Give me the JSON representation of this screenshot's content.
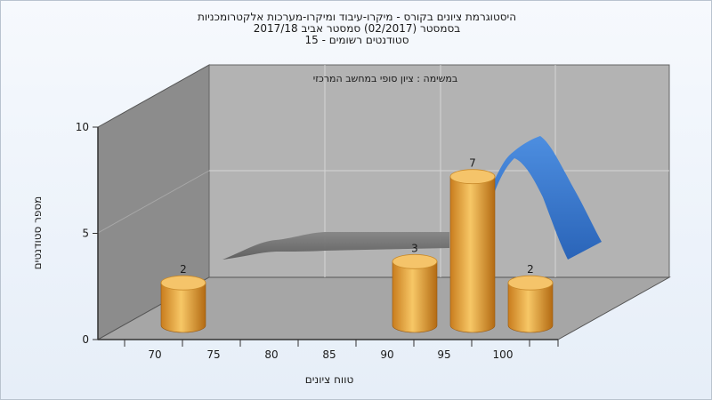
{
  "title": {
    "line1": "היסטוגרמת ציונים בקורס - מיקרו-עיבוד ומיקרו-מערכות אלקטרומכניות",
    "line2": "בסמסטר  (02/2017)  סמסטר אביב 2017/18",
    "line3": "סטודנטים רשומים - 15"
  },
  "chart_data": {
    "type": "bar",
    "title": "היסטוגרמת ציונים בקורס - מיקרו-עיבוד ומיקרו-מערכות אלקטרומכניות",
    "annotation": "במשימה : ציון סופי במחשב המרכזי",
    "xlabel": "טווח ציונים",
    "ylabel": "מספר סטודנטים",
    "x_ticks": [
      "70",
      "75",
      "80",
      "85",
      "90",
      "95",
      "100"
    ],
    "y_ticks": [
      "0",
      "5",
      "10"
    ],
    "ylim": [
      0,
      10
    ],
    "bars": [
      {
        "x": 70,
        "value": 2,
        "label": "2"
      },
      {
        "x": 90,
        "value": 3,
        "label": "3"
      },
      {
        "x": 95,
        "value": 7,
        "label": "7"
      },
      {
        "x": 100,
        "value": 2,
        "label": "2"
      }
    ],
    "background_curves": [
      {
        "color": "#6e6e6e",
        "x": [
          68,
          72,
          76,
          80,
          84,
          88,
          92,
          96
        ],
        "y": [
          0.7,
          1.4,
          1.6,
          1.7,
          1.7,
          1.7,
          1.7,
          1.9
        ]
      },
      {
        "color": "#3f7fd1",
        "x": [
          96,
          98,
          100,
          102,
          104,
          106
        ],
        "y": [
          1.9,
          5.0,
          7.5,
          6.5,
          3.0,
          0.3
        ]
      }
    ],
    "grid": true,
    "colors": {
      "bar": "#e8a23c",
      "bar_top": "#f5c46a",
      "back_wall": "#b5b5b5",
      "side_wall": "#8a8a8a",
      "floor": "#a5a5a5"
    }
  }
}
